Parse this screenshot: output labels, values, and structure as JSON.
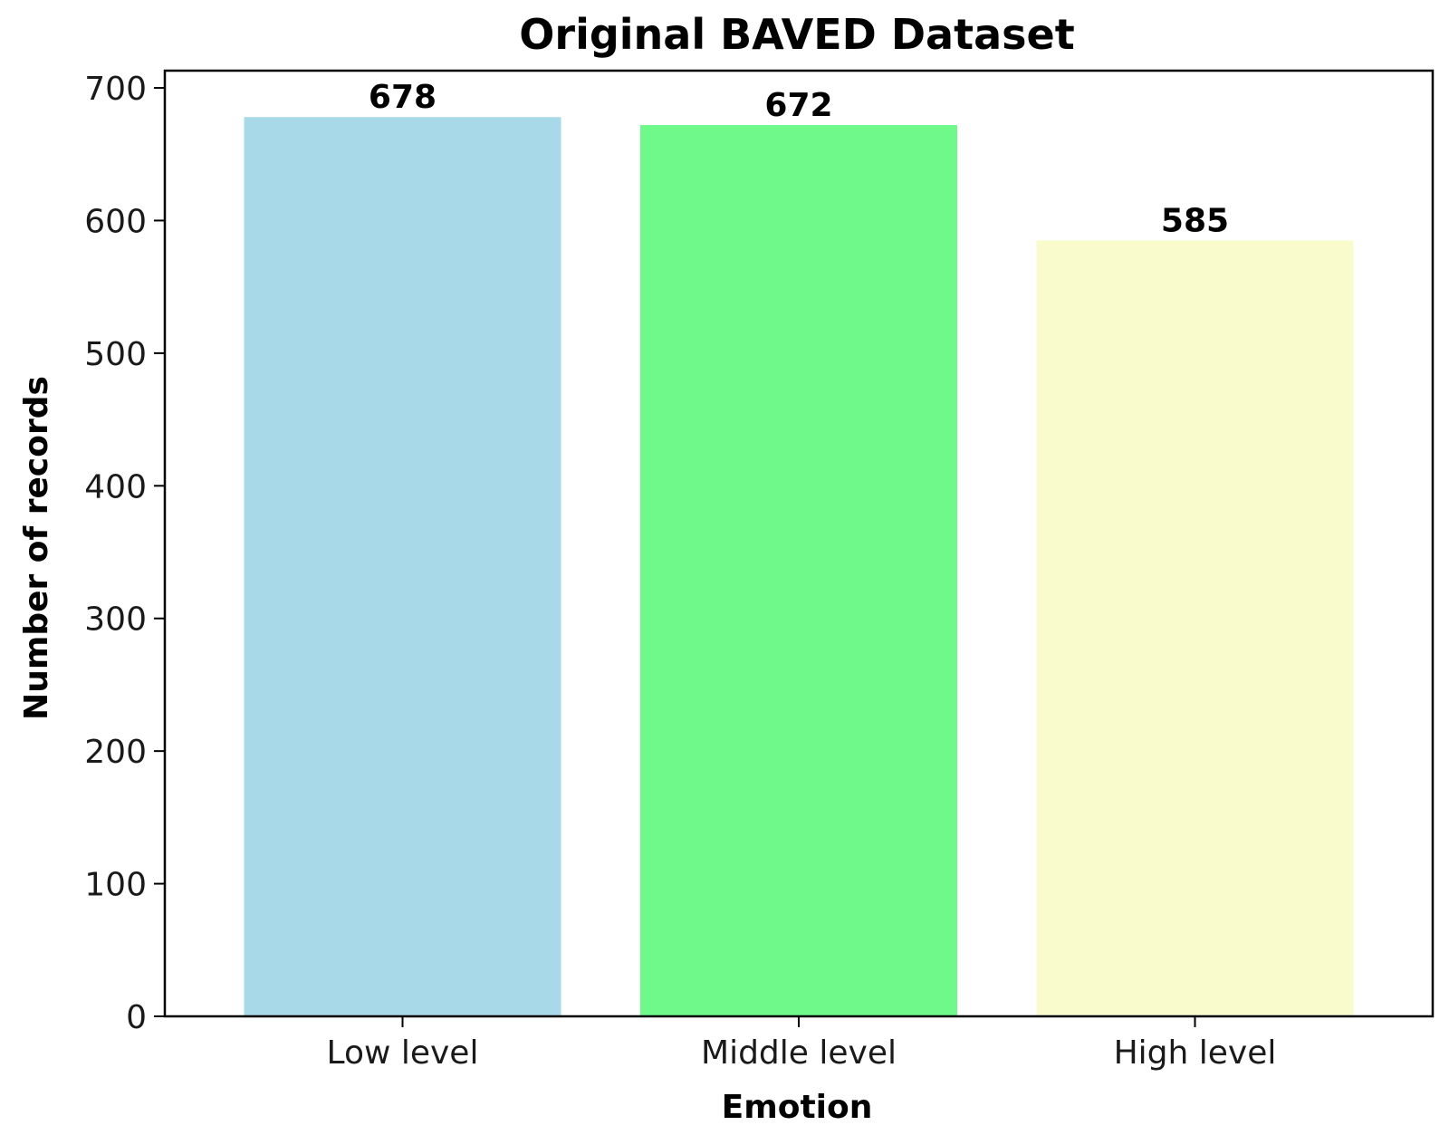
{
  "chart_data": {
    "type": "bar",
    "title": "Original BAVED Dataset",
    "xlabel": "Emotion",
    "ylabel": "Number of records",
    "categories": [
      "Low level",
      "Middle level",
      "High level"
    ],
    "values": [
      678,
      672,
      585
    ],
    "data_labels": [
      "678",
      "672",
      "585"
    ],
    "colors": [
      "#a8d9e8",
      "#6ff98a",
      "#f9fbcc"
    ],
    "ylim": [
      0,
      713
    ],
    "yticks": [
      0,
      100,
      200,
      300,
      400,
      500,
      600,
      700
    ],
    "ytick_labels": [
      "0",
      "100",
      "200",
      "300",
      "400",
      "500",
      "600",
      "700"
    ],
    "grid": false,
    "legend": "none"
  }
}
